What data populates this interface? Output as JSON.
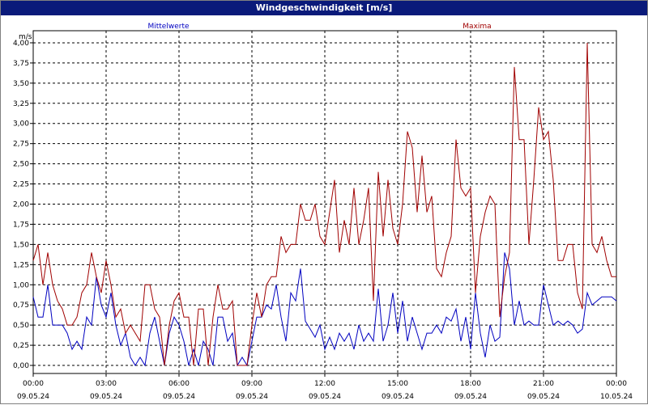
{
  "window": {
    "title": "Windgeschwindigkeit [m/s]"
  },
  "chart_data": {
    "type": "line",
    "title": "Windgeschwindigkeit [m/s]",
    "ylabel": "m/s",
    "ylim": [
      -0.1,
      4.15
    ],
    "yticks": [
      "0,00",
      "0,25",
      "0,50",
      "0,75",
      "1,00",
      "1,25",
      "1,50",
      "1,75",
      "2,00",
      "2,25",
      "2,50",
      "2,75",
      "3,00",
      "3,25",
      "3,50",
      "3,75",
      "4,00"
    ],
    "xlim": [
      0,
      24
    ],
    "xticks": [
      {
        "hour": 0,
        "time": "00:00",
        "date": "09.05.24"
      },
      {
        "hour": 3,
        "time": "03:00",
        "date": "09.05.24"
      },
      {
        "hour": 6,
        "time": "06:00",
        "date": "09.05.24"
      },
      {
        "hour": 9,
        "time": "09:00",
        "date": "09.05.24"
      },
      {
        "hour": 12,
        "time": "12:00",
        "date": "09.05.24"
      },
      {
        "hour": 15,
        "time": "15:00",
        "date": "09.05.24"
      },
      {
        "hour": 18,
        "time": "18:00",
        "date": "09.05.24"
      },
      {
        "hour": 21,
        "time": "21:00",
        "date": "09.05.24"
      },
      {
        "hour": 24,
        "time": "00:00",
        "date": "10.05.24"
      }
    ],
    "grid": true,
    "series": [
      {
        "name": "Mittelwerte",
        "color": "#0000c0",
        "points": [
          [
            0,
            0.85
          ],
          [
            0.2,
            0.6
          ],
          [
            0.4,
            0.6
          ],
          [
            0.6,
            1.0
          ],
          [
            0.8,
            0.5
          ],
          [
            1.0,
            0.5
          ],
          [
            1.2,
            0.5
          ],
          [
            1.4,
            0.4
          ],
          [
            1.6,
            0.2
          ],
          [
            1.8,
            0.3
          ],
          [
            2.0,
            0.2
          ],
          [
            2.2,
            0.6
          ],
          [
            2.4,
            0.5
          ],
          [
            2.6,
            1.1
          ],
          [
            2.8,
            0.75
          ],
          [
            3.0,
            0.6
          ],
          [
            3.2,
            0.9
          ],
          [
            3.4,
            0.5
          ],
          [
            3.6,
            0.25
          ],
          [
            3.8,
            0.4
          ],
          [
            4.0,
            0.1
          ],
          [
            4.2,
            0.0
          ],
          [
            4.4,
            0.1
          ],
          [
            4.6,
            0.0
          ],
          [
            4.8,
            0.4
          ],
          [
            5.0,
            0.6
          ],
          [
            5.2,
            0.3
          ],
          [
            5.4,
            0.0
          ],
          [
            5.6,
            0.4
          ],
          [
            5.8,
            0.6
          ],
          [
            6.0,
            0.5
          ],
          [
            6.2,
            0.3
          ],
          [
            6.4,
            0.0
          ],
          [
            6.6,
            0.2
          ],
          [
            6.8,
            0.0
          ],
          [
            7.0,
            0.3
          ],
          [
            7.2,
            0.2
          ],
          [
            7.4,
            0.0
          ],
          [
            7.6,
            0.6
          ],
          [
            7.8,
            0.6
          ],
          [
            8.0,
            0.3
          ],
          [
            8.2,
            0.4
          ],
          [
            8.4,
            0.0
          ],
          [
            8.6,
            0.1
          ],
          [
            8.8,
            0.0
          ],
          [
            9.0,
            0.3
          ],
          [
            9.2,
            0.6
          ],
          [
            9.4,
            0.6
          ],
          [
            9.6,
            0.75
          ],
          [
            9.8,
            0.7
          ],
          [
            10.0,
            1.0
          ],
          [
            10.2,
            0.6
          ],
          [
            10.4,
            0.3
          ],
          [
            10.6,
            0.9
          ],
          [
            10.8,
            0.8
          ],
          [
            11.0,
            1.2
          ],
          [
            11.2,
            0.55
          ],
          [
            11.4,
            0.45
          ],
          [
            11.6,
            0.35
          ],
          [
            11.8,
            0.5
          ],
          [
            12.0,
            0.2
          ],
          [
            12.2,
            0.35
          ],
          [
            12.4,
            0.2
          ],
          [
            12.6,
            0.4
          ],
          [
            12.8,
            0.3
          ],
          [
            13.0,
            0.4
          ],
          [
            13.2,
            0.2
          ],
          [
            13.4,
            0.5
          ],
          [
            13.6,
            0.3
          ],
          [
            13.8,
            0.4
          ],
          [
            14.0,
            0.3
          ],
          [
            14.2,
            0.95
          ],
          [
            14.4,
            0.3
          ],
          [
            14.6,
            0.5
          ],
          [
            14.8,
            0.9
          ],
          [
            15.0,
            0.4
          ],
          [
            15.2,
            0.8
          ],
          [
            15.4,
            0.3
          ],
          [
            15.6,
            0.6
          ],
          [
            15.8,
            0.4
          ],
          [
            16.0,
            0.2
          ],
          [
            16.2,
            0.4
          ],
          [
            16.4,
            0.4
          ],
          [
            16.6,
            0.5
          ],
          [
            16.8,
            0.4
          ],
          [
            17.0,
            0.6
          ],
          [
            17.2,
            0.55
          ],
          [
            17.4,
            0.7
          ],
          [
            17.6,
            0.3
          ],
          [
            17.8,
            0.6
          ],
          [
            18.0,
            0.2
          ],
          [
            18.2,
            0.9
          ],
          [
            18.4,
            0.4
          ],
          [
            18.6,
            0.1
          ],
          [
            18.8,
            0.5
          ],
          [
            19.0,
            0.3
          ],
          [
            19.2,
            0.35
          ],
          [
            19.4,
            1.4
          ],
          [
            19.6,
            1.2
          ],
          [
            19.8,
            0.5
          ],
          [
            20.0,
            0.8
          ],
          [
            20.2,
            0.5
          ],
          [
            20.4,
            0.55
          ],
          [
            20.6,
            0.5
          ],
          [
            20.8,
            0.5
          ],
          [
            21.0,
            1.0
          ],
          [
            21.2,
            0.75
          ],
          [
            21.4,
            0.5
          ],
          [
            21.6,
            0.55
          ],
          [
            21.8,
            0.5
          ],
          [
            22.0,
            0.55
          ],
          [
            22.2,
            0.5
          ],
          [
            22.4,
            0.4
          ],
          [
            22.6,
            0.45
          ],
          [
            22.8,
            0.9
          ],
          [
            23.0,
            0.75
          ],
          [
            23.2,
            0.8
          ],
          [
            23.4,
            0.85
          ],
          [
            23.6,
            0.85
          ],
          [
            23.8,
            0.85
          ],
          [
            24.0,
            0.8
          ]
        ]
      },
      {
        "name": "Maxima",
        "color": "#a00000",
        "points": [
          [
            0,
            1.3
          ],
          [
            0.2,
            1.5
          ],
          [
            0.4,
            1.0
          ],
          [
            0.6,
            1.4
          ],
          [
            0.8,
            1.0
          ],
          [
            1.0,
            0.8
          ],
          [
            1.2,
            0.7
          ],
          [
            1.4,
            0.5
          ],
          [
            1.6,
            0.5
          ],
          [
            1.8,
            0.6
          ],
          [
            2.0,
            0.9
          ],
          [
            2.2,
            1.0
          ],
          [
            2.4,
            1.4
          ],
          [
            2.6,
            1.1
          ],
          [
            2.8,
            0.9
          ],
          [
            3.0,
            1.3
          ],
          [
            3.2,
            1.0
          ],
          [
            3.4,
            0.6
          ],
          [
            3.6,
            0.7
          ],
          [
            3.8,
            0.4
          ],
          [
            4.0,
            0.5
          ],
          [
            4.2,
            0.4
          ],
          [
            4.4,
            0.3
          ],
          [
            4.6,
            1.0
          ],
          [
            4.8,
            1.0
          ],
          [
            5.0,
            0.7
          ],
          [
            5.2,
            0.6
          ],
          [
            5.4,
            0.0
          ],
          [
            5.6,
            0.5
          ],
          [
            5.8,
            0.8
          ],
          [
            6.0,
            0.9
          ],
          [
            6.2,
            0.6
          ],
          [
            6.4,
            0.6
          ],
          [
            6.6,
            0.0
          ],
          [
            6.8,
            0.7
          ],
          [
            7.0,
            0.7
          ],
          [
            7.2,
            0.0
          ],
          [
            7.4,
            0.6
          ],
          [
            7.6,
            1.0
          ],
          [
            7.8,
            0.7
          ],
          [
            8.0,
            0.7
          ],
          [
            8.2,
            0.8
          ],
          [
            8.4,
            0.0
          ],
          [
            8.6,
            0.0
          ],
          [
            8.8,
            0.0
          ],
          [
            9.0,
            0.5
          ],
          [
            9.2,
            0.9
          ],
          [
            9.4,
            0.6
          ],
          [
            9.6,
            1.0
          ],
          [
            9.8,
            1.1
          ],
          [
            10.0,
            1.1
          ],
          [
            10.2,
            1.6
          ],
          [
            10.4,
            1.4
          ],
          [
            10.6,
            1.5
          ],
          [
            10.8,
            1.5
          ],
          [
            11.0,
            2.0
          ],
          [
            11.2,
            1.8
          ],
          [
            11.4,
            1.8
          ],
          [
            11.6,
            2.0
          ],
          [
            11.8,
            1.6
          ],
          [
            12.0,
            1.5
          ],
          [
            12.2,
            1.9
          ],
          [
            12.4,
            2.3
          ],
          [
            12.6,
            1.4
          ],
          [
            12.8,
            1.8
          ],
          [
            13.0,
            1.5
          ],
          [
            13.2,
            2.2
          ],
          [
            13.4,
            1.5
          ],
          [
            13.6,
            1.8
          ],
          [
            13.8,
            2.2
          ],
          [
            14.0,
            0.8
          ],
          [
            14.2,
            2.4
          ],
          [
            14.4,
            1.6
          ],
          [
            14.6,
            2.3
          ],
          [
            14.8,
            1.7
          ],
          [
            15.0,
            1.5
          ],
          [
            15.2,
            2.0
          ],
          [
            15.4,
            2.9
          ],
          [
            15.6,
            2.7
          ],
          [
            15.8,
            1.9
          ],
          [
            16.0,
            2.6
          ],
          [
            16.2,
            1.9
          ],
          [
            16.4,
            2.1
          ],
          [
            16.6,
            1.2
          ],
          [
            16.8,
            1.1
          ],
          [
            17.0,
            1.4
          ],
          [
            17.2,
            1.6
          ],
          [
            17.4,
            2.8
          ],
          [
            17.6,
            2.2
          ],
          [
            17.8,
            2.1
          ],
          [
            18.0,
            2.2
          ],
          [
            18.2,
            0.9
          ],
          [
            18.4,
            1.6
          ],
          [
            18.6,
            1.9
          ],
          [
            18.8,
            2.1
          ],
          [
            19.0,
            2.0
          ],
          [
            19.2,
            0.6
          ],
          [
            19.4,
            1.1
          ],
          [
            19.6,
            1.4
          ],
          [
            19.8,
            3.7
          ],
          [
            20.0,
            2.8
          ],
          [
            20.2,
            2.8
          ],
          [
            20.4,
            1.5
          ],
          [
            20.6,
            2.3
          ],
          [
            20.8,
            3.2
          ],
          [
            21.0,
            2.8
          ],
          [
            21.2,
            2.9
          ],
          [
            21.4,
            2.3
          ],
          [
            21.6,
            1.3
          ],
          [
            21.8,
            1.3
          ],
          [
            22.0,
            1.5
          ],
          [
            22.2,
            1.5
          ],
          [
            22.4,
            0.9
          ],
          [
            22.6,
            0.7
          ],
          [
            22.8,
            4.0
          ],
          [
            23.0,
            1.5
          ],
          [
            23.2,
            1.4
          ],
          [
            23.4,
            1.6
          ],
          [
            23.6,
            1.3
          ],
          [
            23.8,
            1.1
          ],
          [
            24.0,
            1.1
          ]
        ]
      }
    ]
  }
}
